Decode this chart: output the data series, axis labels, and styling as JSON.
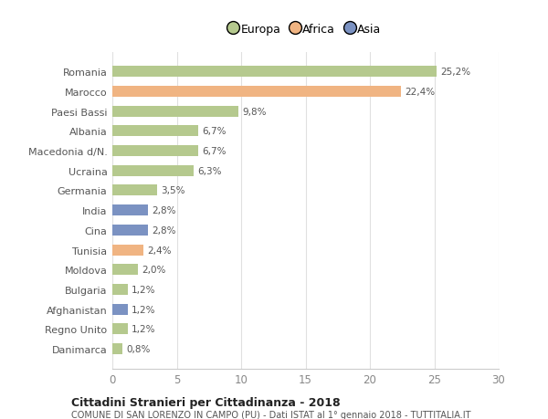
{
  "countries": [
    "Romania",
    "Marocco",
    "Paesi Bassi",
    "Albania",
    "Macedonia d/N.",
    "Ucraina",
    "Germania",
    "India",
    "Cina",
    "Tunisia",
    "Moldova",
    "Bulgaria",
    "Afghanistan",
    "Regno Unito",
    "Danimarca"
  ],
  "values": [
    25.2,
    22.4,
    9.8,
    6.7,
    6.7,
    6.3,
    3.5,
    2.8,
    2.8,
    2.4,
    2.0,
    1.2,
    1.2,
    1.2,
    0.8
  ],
  "labels": [
    "25,2%",
    "22,4%",
    "9,8%",
    "6,7%",
    "6,7%",
    "6,3%",
    "3,5%",
    "2,8%",
    "2,8%",
    "2,4%",
    "2,0%",
    "1,2%",
    "1,2%",
    "1,2%",
    "0,8%"
  ],
  "continents": [
    "Europa",
    "Africa",
    "Europa",
    "Europa",
    "Europa",
    "Europa",
    "Europa",
    "Asia",
    "Asia",
    "Africa",
    "Europa",
    "Europa",
    "Asia",
    "Europa",
    "Europa"
  ],
  "colors": {
    "Europa": "#b5c98e",
    "Africa": "#f0b482",
    "Asia": "#7b92c2"
  },
  "xlim": [
    0,
    30
  ],
  "xticks": [
    0,
    5,
    10,
    15,
    20,
    25,
    30
  ],
  "title": "Cittadini Stranieri per Cittadinanza - 2018",
  "subtitle": "COMUNE DI SAN LORENZO IN CAMPO (PU) - Dati ISTAT al 1° gennaio 2018 - TUTTITALIA.IT",
  "background_color": "#ffffff",
  "grid_color": "#e0e0e0",
  "bar_height": 0.55
}
